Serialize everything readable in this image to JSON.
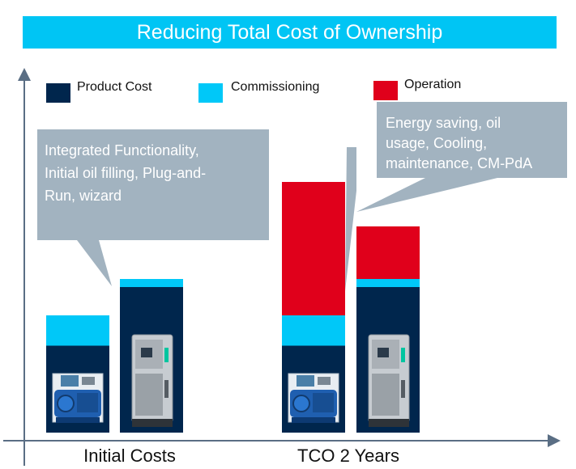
{
  "title": "Reducing Total Cost of Ownership",
  "chart_data": {
    "type": "bar",
    "stacked": true,
    "categories": [
      "Initial Costs",
      "TCO 2 Years"
    ],
    "bars": [
      {
        "group": "Initial Costs",
        "segments": {
          "Product Cost": 43,
          "Commissioning": 15,
          "Operation": 0
        }
      },
      {
        "group": "Initial Costs",
        "segments": {
          "Product Cost": 72,
          "Commissioning": 4,
          "Operation": 0
        }
      },
      {
        "group": "TCO 2 Years",
        "segments": {
          "Product Cost": 43,
          "Commissioning": 15,
          "Operation": 66
        }
      },
      {
        "group": "TCO 2 Years",
        "segments": {
          "Product Cost": 72,
          "Commissioning": 4,
          "Operation": 26
        }
      }
    ],
    "series": [
      {
        "name": "Product Cost",
        "color": "#00264d"
      },
      {
        "name": "Commissioning",
        "color": "#00c8f8"
      },
      {
        "name": "Operation",
        "color": "#e0001b"
      }
    ],
    "ylim": [
      0,
      128
    ],
    "legend_position": "top-left",
    "grid": false,
    "annotations": [
      {
        "lines": [
          "Integrated Functionality,",
          "Initial oil filling, Plug-and-",
          "Run, wizard"
        ]
      },
      {
        "lines": [
          "Energy saving, oil",
          "usage, Cooling,",
          "maintenance, CM-PdA"
        ]
      }
    ]
  }
}
